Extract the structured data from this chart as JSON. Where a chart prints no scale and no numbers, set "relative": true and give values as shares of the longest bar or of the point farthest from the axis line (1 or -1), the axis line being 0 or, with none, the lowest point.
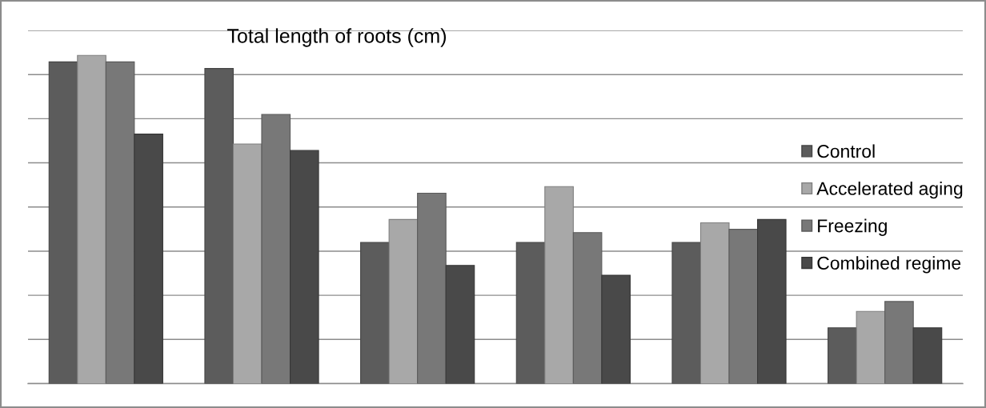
{
  "chart_data": {
    "type": "bar",
    "title": "Total length of roots (cm)",
    "relative": true,
    "categories": [
      null,
      null,
      null,
      null,
      null,
      null
    ],
    "series": [
      {
        "name": "Control",
        "color": "#5c5c5c",
        "values": [
          0.98,
          0.96,
          0.43,
          0.43,
          0.43,
          0.17
        ]
      },
      {
        "name": "Accelerated aging",
        "color": "#a8a8a8",
        "values": [
          1.0,
          0.73,
          0.5,
          0.6,
          0.49,
          0.22
        ]
      },
      {
        "name": "Freezing",
        "color": "#787878",
        "values": [
          0.98,
          0.82,
          0.58,
          0.46,
          0.47,
          0.25
        ]
      },
      {
        "name": "Combined regime",
        "color": "#494949",
        "values": [
          0.76,
          0.71,
          0.36,
          0.33,
          0.5,
          0.17
        ]
      }
    ],
    "grid": "y",
    "legend": "right"
  }
}
